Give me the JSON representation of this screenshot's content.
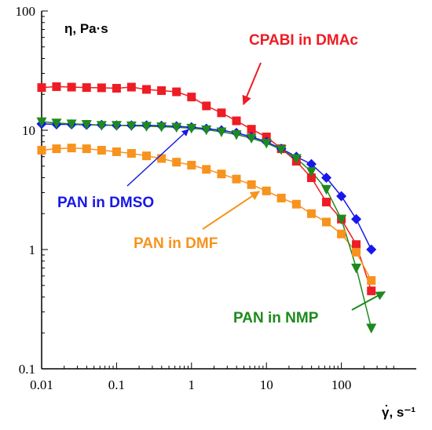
{
  "chart_data": {
    "type": "scatter",
    "x_scale": "log",
    "y_scale": "log",
    "xlim": [
      0.01,
      1000
    ],
    "ylim": [
      0.1,
      100
    ],
    "xlabel": "γ, s⁻¹",
    "ylabel": "η, Pa·s",
    "grid": false,
    "x_ticks": [
      "0.01",
      "0.1",
      "1",
      "10",
      "100"
    ],
    "y_ticks": [
      "100",
      "10",
      "1",
      "0.1"
    ],
    "x_tick_values": [
      0.01,
      0.1,
      1,
      10,
      100
    ],
    "y_tick_values": [
      100,
      10,
      1,
      0.1
    ],
    "series": [
      {
        "name": "CPABI in DMAc",
        "color": "#ee1c24",
        "marker": "square",
        "x": [
          0.01,
          0.0158,
          0.0251,
          0.0398,
          0.0631,
          0.1,
          0.158,
          0.251,
          0.398,
          0.631,
          1.0,
          1.58,
          2.51,
          3.98,
          6.31,
          10,
          15.8,
          25.1,
          39.8,
          63.1,
          100,
          158,
          251
        ],
        "y": [
          22.8,
          23.2,
          23.0,
          22.8,
          22.7,
          22.5,
          23.0,
          22.0,
          21.5,
          21.0,
          19.0,
          16.0,
          14.0,
          12.0,
          10.2,
          8.8,
          7.0,
          5.5,
          4.0,
          2.5,
          1.8,
          1.1,
          0.45
        ]
      },
      {
        "name": "PAN in DMSO",
        "color": "#1818e8",
        "marker": "diamond",
        "x": [
          0.01,
          0.0158,
          0.0251,
          0.0398,
          0.0631,
          0.1,
          0.158,
          0.251,
          0.398,
          0.631,
          1.0,
          1.58,
          2.51,
          3.98,
          6.31,
          10,
          15.8,
          25.1,
          39.8,
          63.1,
          100,
          158,
          251
        ],
        "y": [
          11.3,
          11.2,
          11.2,
          11.1,
          11.1,
          11.0,
          11.0,
          11.0,
          10.9,
          10.8,
          10.6,
          10.3,
          10.0,
          9.5,
          8.8,
          8.0,
          7.0,
          6.0,
          5.2,
          4.0,
          2.8,
          1.8,
          1.0
        ]
      },
      {
        "name": "PAN in DMF",
        "color": "#f7931e",
        "marker": "square",
        "x": [
          0.01,
          0.0158,
          0.0251,
          0.0398,
          0.0631,
          0.1,
          0.158,
          0.251,
          0.398,
          0.631,
          1.0,
          1.58,
          2.51,
          3.98,
          6.31,
          10,
          15.8,
          25.1,
          39.8,
          63.1,
          100,
          158,
          251
        ],
        "y": [
          6.8,
          7.0,
          7.1,
          7.0,
          6.8,
          6.6,
          6.4,
          6.1,
          5.8,
          5.4,
          5.1,
          4.7,
          4.3,
          3.9,
          3.5,
          3.1,
          2.7,
          2.4,
          2.0,
          1.7,
          1.35,
          0.95,
          0.55
        ]
      },
      {
        "name": "PAN in NMP",
        "color": "#1e8a1e",
        "marker": "triangle-down",
        "x": [
          0.01,
          0.0158,
          0.0251,
          0.0398,
          0.0631,
          0.1,
          0.158,
          0.251,
          0.398,
          0.631,
          1.0,
          1.58,
          2.51,
          3.98,
          6.31,
          10,
          15.8,
          25.1,
          39.8,
          63.1,
          100,
          158,
          251
        ],
        "y": [
          11.8,
          11.5,
          11.3,
          11.2,
          11.0,
          11.0,
          10.9,
          10.8,
          10.7,
          10.6,
          10.4,
          10.1,
          9.7,
          9.2,
          8.6,
          7.8,
          6.9,
          5.8,
          4.5,
          3.2,
          1.8,
          0.7,
          0.22
        ]
      }
    ],
    "annotations": [
      {
        "text": "CPABI in DMAc",
        "color": "#ee1c24"
      },
      {
        "text": "PAN in DMSO",
        "color": "#1818e8"
      },
      {
        "text": "PAN in DMF",
        "color": "#f7931e"
      },
      {
        "text": "PAN in NMP",
        "color": "#1e8a1e"
      }
    ]
  }
}
